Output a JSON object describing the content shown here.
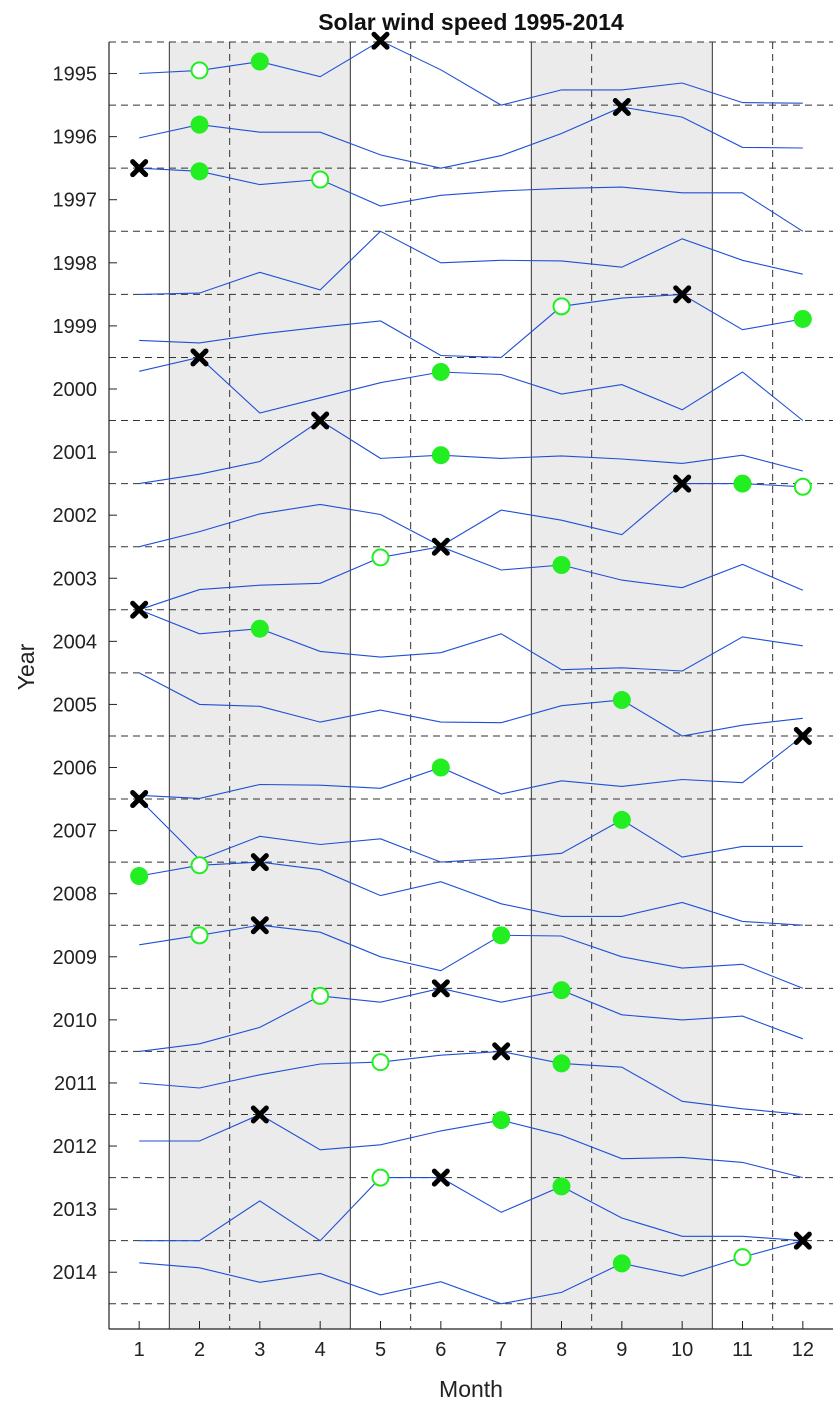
{
  "chart_data": {
    "type": "line",
    "title": "Solar wind speed 1995-2014",
    "xlabel": "Month",
    "ylabel": "Year",
    "x": [
      1,
      2,
      3,
      4,
      5,
      6,
      7,
      8,
      9,
      10,
      11,
      12
    ],
    "xlim": [
      0.5,
      12.5
    ],
    "ylim": [
      1994.5,
      2014.9
    ],
    "y_reversed": true,
    "yticks": [
      1995,
      1996,
      1997,
      1998,
      1999,
      2000,
      2001,
      2002,
      2003,
      2004,
      2005,
      2006,
      2007,
      2008,
      2009,
      2010,
      2011,
      2012,
      2013,
      2014
    ],
    "shaded_month_spans": [
      [
        1.5,
        4.5
      ],
      [
        7.5,
        10.5
      ]
    ],
    "dashed_month_lines": [
      2.5,
      5.5,
      8.5,
      11.5
    ],
    "series": [
      {
        "year": 1995,
        "values": [
          1995.0,
          1994.95,
          1994.81,
          1995.05,
          1994.48,
          1994.94,
          1995.5,
          1995.26,
          1995.26,
          1995.15,
          1995.46,
          1995.47
        ],
        "max_month": 5,
        "markers": [
          {
            "month": 2,
            "style": "open"
          },
          {
            "month": 3,
            "style": "filled"
          }
        ]
      },
      {
        "year": 1996,
        "values": [
          1996.02,
          1995.81,
          1995.93,
          1995.93,
          1996.29,
          1996.5,
          1996.3,
          1995.95,
          1995.53,
          1995.69,
          1996.17,
          1996.18
        ],
        "max_month": 9,
        "markers": [
          {
            "month": 2,
            "style": "filled"
          }
        ]
      },
      {
        "year": 1997,
        "values": [
          1996.5,
          1996.55,
          1996.76,
          1996.68,
          1997.1,
          1996.93,
          1996.86,
          1996.82,
          1996.8,
          1996.89,
          1996.89,
          1997.5
        ],
        "max_month": 1,
        "markers": [
          {
            "month": 2,
            "style": "filled"
          },
          {
            "month": 4,
            "style": "open"
          }
        ]
      },
      {
        "year": 1998,
        "values": [
          1998.5,
          1998.48,
          1998.15,
          1998.43,
          1997.5,
          1998.0,
          1997.96,
          1997.97,
          1998.07,
          1997.62,
          1997.96,
          1998.18
        ]
      },
      {
        "year": 1999,
        "values": [
          1999.23,
          1999.27,
          1999.13,
          1999.02,
          1998.92,
          1999.47,
          1999.5,
          1998.69,
          1998.56,
          1998.5,
          1999.06,
          1998.89
        ],
        "max_month": 10,
        "markers": [
          {
            "month": 8,
            "style": "open"
          },
          {
            "month": 12,
            "style": "filled"
          }
        ]
      },
      {
        "year": 2000,
        "values": [
          1999.72,
          1999.5,
          2000.38,
          2000.14,
          1999.9,
          1999.73,
          1999.77,
          2000.08,
          1999.93,
          2000.33,
          1999.73,
          2000.5
        ],
        "max_month": 2,
        "markers": [
          {
            "month": 6,
            "style": "filled"
          }
        ]
      },
      {
        "year": 2001,
        "values": [
          2001.5,
          2001.35,
          2001.15,
          2000.5,
          2001.1,
          2001.05,
          2001.1,
          2001.06,
          2001.11,
          2001.18,
          2001.05,
          2001.3
        ],
        "max_month": 4,
        "markers": [
          {
            "month": 6,
            "style": "filled"
          }
        ]
      },
      {
        "year": 2002,
        "values": [
          2002.5,
          2002.26,
          2001.98,
          2001.83,
          2001.99,
          2002.49,
          2001.92,
          2002.08,
          2002.31,
          2001.5,
          2001.5,
          2001.55
        ],
        "max_month": 10,
        "markers": [
          {
            "month": 11,
            "style": "filled"
          },
          {
            "month": 12,
            "style": "open"
          }
        ]
      },
      {
        "year": 2003,
        "values": [
          2003.5,
          2003.18,
          2003.11,
          2003.08,
          2002.67,
          2002.5,
          2002.87,
          2002.79,
          2003.03,
          2003.15,
          2002.78,
          2003.19
        ],
        "max_month": 6,
        "markers": [
          {
            "month": 5,
            "style": "open"
          },
          {
            "month": 8,
            "style": "filled"
          }
        ]
      },
      {
        "year": 2004,
        "values": [
          2003.5,
          2003.88,
          2003.8,
          2004.16,
          2004.25,
          2004.18,
          2003.88,
          2004.45,
          2004.42,
          2004.47,
          2003.93,
          2004.07
        ],
        "max_month": 1,
        "markers": [
          {
            "month": 3,
            "style": "filled"
          }
        ]
      },
      {
        "year": 2005,
        "values": [
          2004.5,
          2005.0,
          2005.03,
          2005.28,
          2005.09,
          2005.28,
          2005.29,
          2005.02,
          2004.93,
          2005.5,
          2005.33,
          2005.22
        ],
        "markers": [
          {
            "month": 9,
            "style": "filled"
          }
        ]
      },
      {
        "year": 2006,
        "values": [
          2006.44,
          2006.49,
          2006.27,
          2006.28,
          2006.33,
          2006.0,
          2006.42,
          2006.21,
          2006.3,
          2006.19,
          2006.24,
          2005.5
        ],
        "max_month": 12,
        "markers": [
          {
            "month": 6,
            "style": "filled"
          }
        ]
      },
      {
        "year": 2007,
        "values": [
          2006.5,
          2007.46,
          2007.09,
          2007.22,
          2007.13,
          2007.5,
          2007.44,
          2007.36,
          2006.83,
          2007.42,
          2007.25,
          2007.25
        ],
        "max_month": 1,
        "markers": [
          {
            "month": 9,
            "style": "filled"
          }
        ]
      },
      {
        "year": 2008,
        "values": [
          2007.72,
          2007.55,
          2007.5,
          2007.62,
          2008.03,
          2007.81,
          2008.16,
          2008.36,
          2008.36,
          2008.14,
          2008.44,
          2008.5
        ],
        "max_month": 3,
        "markers": [
          {
            "month": 1,
            "style": "filled"
          },
          {
            "month": 2,
            "style": "open"
          }
        ]
      },
      {
        "year": 2009,
        "values": [
          2008.81,
          2008.66,
          2008.5,
          2008.61,
          2009.0,
          2009.22,
          2008.66,
          2008.67,
          2009.0,
          2009.18,
          2009.12,
          2009.5
        ],
        "max_month": 3,
        "markers": [
          {
            "month": 2,
            "style": "open"
          },
          {
            "month": 7,
            "style": "filled"
          }
        ]
      },
      {
        "year": 2010,
        "values": [
          2010.5,
          2010.38,
          2010.12,
          2009.62,
          2009.72,
          2009.5,
          2009.72,
          2009.53,
          2009.92,
          2010.0,
          2009.94,
          2010.3
        ],
        "max_month": 6,
        "markers": [
          {
            "month": 4,
            "style": "open"
          },
          {
            "month": 8,
            "style": "filled"
          }
        ]
      },
      {
        "year": 2011,
        "values": [
          2011.0,
          2011.08,
          2010.87,
          2010.7,
          2010.67,
          2010.56,
          2010.5,
          2010.69,
          2010.75,
          2011.29,
          2011.41,
          2011.5
        ],
        "max_month": 7,
        "markers": [
          {
            "month": 5,
            "style": "open"
          },
          {
            "month": 8,
            "style": "filled"
          }
        ]
      },
      {
        "year": 2012,
        "values": [
          2011.92,
          2011.92,
          2011.5,
          2012.06,
          2011.98,
          2011.76,
          2011.59,
          2011.83,
          2012.2,
          2012.18,
          2012.26,
          2012.5
        ],
        "max_month": 3,
        "markers": [
          {
            "month": 7,
            "style": "filled"
          }
        ]
      },
      {
        "year": 2013,
        "values": [
          2013.5,
          2013.5,
          2012.87,
          2013.5,
          2012.5,
          2012.5,
          2013.05,
          2012.64,
          2013.14,
          2013.43,
          2013.43,
          2013.5
        ],
        "max_month": 6,
        "markers": [
          {
            "month": 5,
            "style": "open"
          },
          {
            "month": 8,
            "style": "filled"
          }
        ]
      },
      {
        "year": 2014,
        "values": [
          2013.85,
          2013.93,
          2014.16,
          2014.02,
          2014.36,
          2014.15,
          2014.5,
          2014.32,
          2013.86,
          2014.06,
          2013.76,
          2013.5
        ],
        "max_month": 12,
        "markers": [
          {
            "month": 9,
            "style": "filled"
          },
          {
            "month": 11,
            "style": "open"
          }
        ]
      }
    ]
  },
  "colors": {
    "line": "#1f4fd6",
    "marker": "#22ee22",
    "max_marker": "#000000",
    "shade": "#ebebeb",
    "grid": "#333333"
  }
}
